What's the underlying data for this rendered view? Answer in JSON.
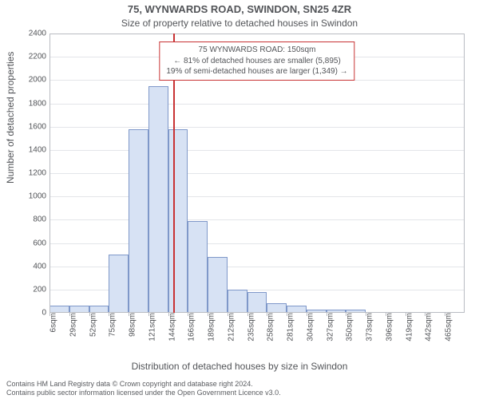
{
  "title_line1": "75, WYNWARDS ROAD, SWINDON, SN25 4ZR",
  "title_line2": "Size of property relative to detached houses in Swindon",
  "ylabel": "Number of detached properties",
  "xlabel": "Distribution of detached houses by size in Swindon",
  "footer_line1": "Contains HM Land Registry data © Crown copyright and database right 2024.",
  "footer_line2": "Contains public sector information licensed under the Open Government Licence v3.0.",
  "chart": {
    "type": "histogram",
    "background_color": "#ffffff",
    "plot_border_color": "#b9bcc2",
    "grid_color": "#e3e5e9",
    "bar_fill": "#d7e2f4",
    "bar_stroke": "#7f98c9",
    "tick_font_size": 10,
    "label_font_size": 12,
    "title_font_size": 13,
    "y": {
      "min": 0,
      "max": 2400,
      "step": 200
    },
    "x": {
      "bin_start": 6,
      "bin_width": 23,
      "n_bins": 21,
      "tick_labels": [
        "6sqm",
        "29sqm",
        "52sqm",
        "75sqm",
        "98sqm",
        "121sqm",
        "144sqm",
        "166sqm",
        "189sqm",
        "212sqm",
        "235sqm",
        "258sqm",
        "281sqm",
        "304sqm",
        "327sqm",
        "350sqm",
        "373sqm",
        "396sqm",
        "419sqm",
        "442sqm",
        "465sqm"
      ]
    },
    "values": [
      60,
      60,
      60,
      500,
      1580,
      1950,
      1580,
      790,
      480,
      200,
      180,
      80,
      60,
      30,
      30,
      30,
      0,
      0,
      0,
      0,
      0
    ],
    "marker": {
      "value_sqm": 150,
      "color": "#c83234",
      "annotation": {
        "line1": "75 WYNWARDS ROAD: 150sqm",
        "line2": "← 81% of detached houses are smaller (5,895)",
        "line3": "19% of semi-detached houses are larger (1,349) →"
      }
    }
  }
}
